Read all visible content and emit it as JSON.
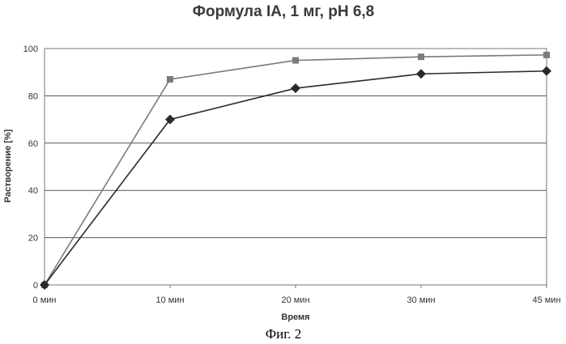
{
  "chart_data": {
    "type": "line",
    "title": "Формула IA, 1 мг, pH 6,8",
    "xlabel": "Время",
    "ylabel": "Растворение [%]",
    "categories": [
      "0 мин",
      "10 мин",
      "20 мин",
      "30 мин",
      "45 мин"
    ],
    "ylim": [
      0,
      100
    ],
    "yticks": [
      0,
      20,
      40,
      60,
      80,
      100
    ],
    "grid": true,
    "series": [
      {
        "values": [
          0,
          87,
          95,
          96.5,
          97.3
        ],
        "marker": "square",
        "color": "#7a7a7a"
      },
      {
        "values": [
          0,
          70,
          83.2,
          89.3,
          90.5
        ],
        "marker": "diamond",
        "color": "#2a2a2a"
      }
    ]
  },
  "caption": "Фиг. 2"
}
